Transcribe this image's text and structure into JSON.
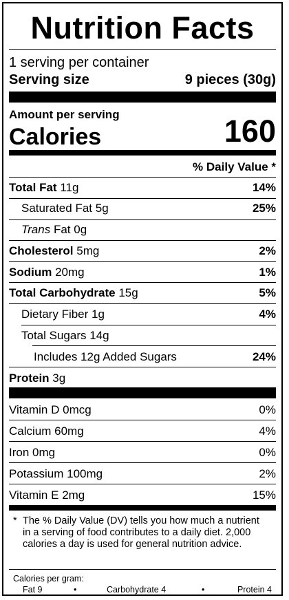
{
  "title": "Nutrition Facts",
  "servings_per_container": "1 serving per container",
  "serving_size_label": "Serving size",
  "serving_size_value": "9 pieces (30g)",
  "amount_per_serving": "Amount per serving",
  "calories_label": "Calories",
  "calories_value": "160",
  "daily_value_header": "% Daily Value *",
  "nutrients": [
    {
      "name": "Total Fat",
      "amount": "11g",
      "dv": "14%"
    },
    {
      "name": "Saturated Fat",
      "amount": "5g",
      "dv": "25%"
    },
    {
      "name": "Trans",
      "name_rest": "Fat",
      "amount": "0g",
      "dv": ""
    },
    {
      "name": "Cholesterol",
      "amount": "5mg",
      "dv": "2%"
    },
    {
      "name": "Sodium",
      "amount": "20mg",
      "dv": "1%"
    },
    {
      "name": "Total Carbohydrate",
      "amount": "15g",
      "dv": "5%"
    },
    {
      "name": "Dietary Fiber",
      "amount": "1g",
      "dv": "4%"
    },
    {
      "name": "Total Sugars",
      "amount": "14g",
      "dv": ""
    },
    {
      "name": "Includes 12g Added Sugars",
      "amount": "",
      "dv": "24%"
    },
    {
      "name": "Protein",
      "amount": "3g",
      "dv": ""
    }
  ],
  "vitamins": [
    {
      "name": "Vitamin D",
      "amount": "0mcg",
      "dv": "0%"
    },
    {
      "name": "Calcium",
      "amount": "60mg",
      "dv": "4%"
    },
    {
      "name": "Iron",
      "amount": "0mg",
      "dv": "0%"
    },
    {
      "name": "Potassium",
      "amount": "100mg",
      "dv": "2%"
    },
    {
      "name": "Vitamin E",
      "amount": "2mg",
      "dv": "15%"
    }
  ],
  "footnote_star": "*",
  "footnote_text": "The % Daily Value (DV) tells you how much a nutrient in a serving of food contributes to a daily diet. 2,000 calories a day is used for general nutrition advice.",
  "calories_per_gram": {
    "heading": "Calories per gram:",
    "fat": "Fat 9",
    "carbohydrate": "Carbohydrate 4",
    "protein": "Protein 4",
    "separator": "•"
  }
}
